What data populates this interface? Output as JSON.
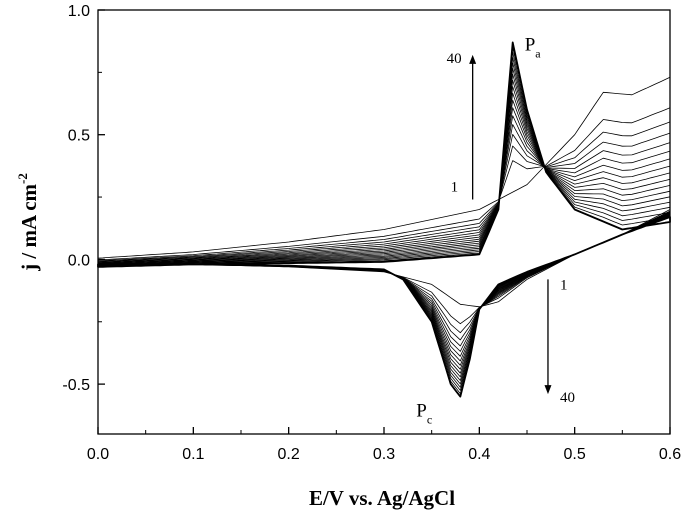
{
  "chart_data": {
    "type": "line",
    "title": "",
    "xlabel": "E/V vs. Ag/AgCl",
    "ylabel": "j / mA cm",
    "ylabel_superscript": "-2",
    "xlim": [
      0.0,
      0.6
    ],
    "ylim": [
      -0.7,
      1.0
    ],
    "x_ticks": [
      "0.0",
      "0.1",
      "0.2",
      "0.3",
      "0.4",
      "0.5",
      "0.6"
    ],
    "y_ticks": [
      "1.0",
      "0.5",
      "0.0",
      "-0.5"
    ],
    "grid": false,
    "legend": "none",
    "cycles": {
      "first": 1,
      "last": 40,
      "drawn": 18
    },
    "series": [
      {
        "name": "1",
        "forward": [
          [
            0.0,
            0.005
          ],
          [
            0.1,
            0.03
          ],
          [
            0.2,
            0.07
          ],
          [
            0.3,
            0.12
          ],
          [
            0.4,
            0.2
          ],
          [
            0.45,
            0.3
          ],
          [
            0.5,
            0.5
          ],
          [
            0.53,
            0.67
          ],
          [
            0.56,
            0.66
          ],
          [
            0.6,
            0.73
          ]
        ],
        "reverse": [
          [
            0.6,
            0.2
          ],
          [
            0.55,
            0.1
          ],
          [
            0.5,
            0.02
          ],
          [
            0.45,
            -0.08
          ],
          [
            0.42,
            -0.17
          ],
          [
            0.4,
            -0.19
          ],
          [
            0.38,
            -0.18
          ],
          [
            0.35,
            -0.1
          ],
          [
            0.3,
            -0.05
          ],
          [
            0.2,
            -0.03
          ],
          [
            0.1,
            -0.02
          ],
          [
            0.0,
            -0.015
          ]
        ]
      },
      {
        "name": "40",
        "forward": [
          [
            0.0,
            -0.03
          ],
          [
            0.1,
            -0.02
          ],
          [
            0.2,
            -0.015
          ],
          [
            0.3,
            -0.01
          ],
          [
            0.4,
            0.02
          ],
          [
            0.42,
            0.2
          ],
          [
            0.435,
            0.87
          ],
          [
            0.45,
            0.6
          ],
          [
            0.47,
            0.35
          ],
          [
            0.5,
            0.2
          ],
          [
            0.55,
            0.12
          ],
          [
            0.6,
            0.15
          ]
        ],
        "reverse": [
          [
            0.6,
            0.17
          ],
          [
            0.55,
            0.1
          ],
          [
            0.5,
            0.02
          ],
          [
            0.45,
            -0.05
          ],
          [
            0.42,
            -0.1
          ],
          [
            0.4,
            -0.2
          ],
          [
            0.39,
            -0.4
          ],
          [
            0.38,
            -0.55
          ],
          [
            0.37,
            -0.5
          ],
          [
            0.35,
            -0.25
          ],
          [
            0.32,
            -0.08
          ],
          [
            0.3,
            -0.04
          ],
          [
            0.2,
            -0.025
          ],
          [
            0.1,
            -0.02
          ],
          [
            0.0,
            -0.02
          ]
        ]
      }
    ],
    "peaks": [
      {
        "label": "P",
        "subscript": "a",
        "x": 0.435,
        "y": 0.87
      },
      {
        "label": "P",
        "subscript": "c",
        "x": 0.38,
        "y": -0.55
      }
    ],
    "annotations": {
      "anodic_arrow": {
        "start": "1",
        "end": "40",
        "x": 0.393,
        "y_from": 0.24,
        "y_to": 0.82
      },
      "cathodic_arrow": {
        "start": "1",
        "end": "40",
        "x": 0.472,
        "y_from": -0.08,
        "y_to": -0.54
      }
    }
  }
}
